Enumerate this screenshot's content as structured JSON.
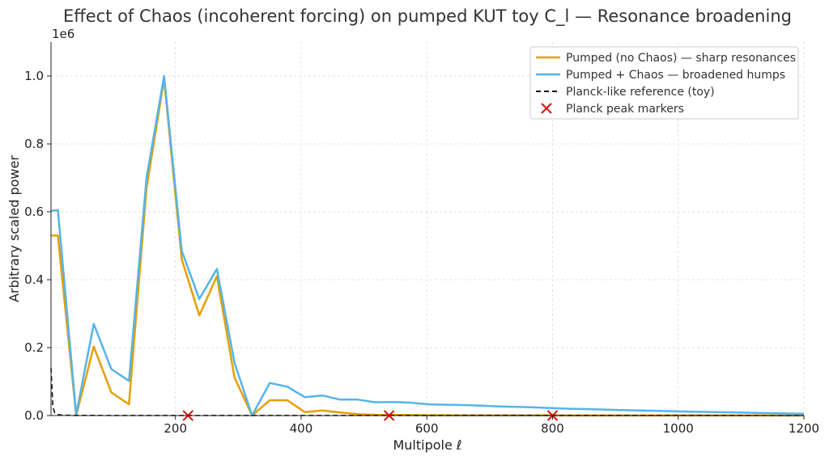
{
  "chart_data": {
    "type": "line",
    "title": "Effect of Chaos (incoherent forcing) on pumped KUT toy C_l — Resonance broadening",
    "xlabel": "Multipole ℓ",
    "ylabel": "Arbitrary scaled power",
    "y_offset_label": "1e6",
    "xlim": [
      2,
      1200
    ],
    "ylim": [
      0,
      1100000
    ],
    "xticks": [
      200,
      400,
      600,
      800,
      1000,
      1200
    ],
    "yticks": [
      0,
      200000,
      400000,
      600000,
      800000,
      1000000
    ],
    "ytick_labels": [
      "0.0",
      "0.2",
      "0.4",
      "0.6",
      "0.8",
      "1.0"
    ],
    "grid": true,
    "legend_position": "top-right",
    "series": [
      {
        "name": "Pumped (no Chaos) — sharp resonances",
        "color": "#E69F00",
        "style": "solid",
        "x": [
          2,
          13,
          42,
          70,
          98,
          126,
          154,
          182,
          210,
          238,
          266,
          294,
          322,
          350,
          378,
          406,
          434,
          462,
          490,
          518,
          546,
          574,
          602,
          630,
          658,
          686,
          714,
          742,
          770,
          798,
          826,
          854,
          882,
          910,
          938,
          966,
          994,
          1022,
          1050,
          1078,
          1106,
          1134,
          1162,
          1200
        ],
        "y": [
          530000,
          530000,
          0,
          203000,
          68000,
          33000,
          670000,
          990000,
          460000,
          295000,
          410000,
          112000,
          0,
          45000,
          45000,
          10000,
          15000,
          9000,
          4000,
          2000,
          2000,
          1500,
          1000,
          1000,
          800,
          700,
          600,
          500,
          400,
          400,
          300,
          300,
          300,
          200,
          200,
          200,
          200,
          200,
          200,
          150,
          150,
          150,
          100,
          100
        ]
      },
      {
        "name": "Pumped + Chaos — broadened humps",
        "color": "#56B4E9",
        "style": "solid",
        "x": [
          2,
          13,
          42,
          70,
          98,
          126,
          154,
          182,
          210,
          238,
          266,
          294,
          322,
          350,
          378,
          406,
          434,
          462,
          490,
          518,
          546,
          574,
          602,
          630,
          658,
          686,
          714,
          742,
          770,
          798,
          826,
          854,
          882,
          910,
          938,
          966,
          994,
          1022,
          1050,
          1078,
          1106,
          1134,
          1162,
          1200
        ],
        "y": [
          603000,
          605000,
          3000,
          270000,
          137000,
          102000,
          700000,
          1000000,
          485000,
          343000,
          432000,
          155000,
          0,
          96000,
          85000,
          54000,
          59000,
          47000,
          47000,
          39000,
          40000,
          38000,
          33000,
          32000,
          31000,
          29000,
          27000,
          25500,
          24000,
          22000,
          20000,
          19000,
          17500,
          16000,
          15000,
          14000,
          12500,
          11500,
          10500,
          9500,
          8500,
          7500,
          6500,
          5000
        ]
      },
      {
        "name": "Planck-like reference (toy)",
        "color": "#111111",
        "style": "dashed",
        "x": [
          2,
          5,
          8,
          12,
          20,
          40,
          100,
          300,
          600,
          1200
        ],
        "y": [
          140000,
          25000,
          8000,
          3000,
          1200,
          500,
          200,
          150,
          120,
          100
        ]
      }
    ],
    "markers": {
      "name": "Planck peak markers",
      "color": "#DD1111",
      "symbol": "x",
      "x": [
        220,
        540,
        800
      ],
      "y": [
        0,
        0,
        0
      ]
    }
  }
}
